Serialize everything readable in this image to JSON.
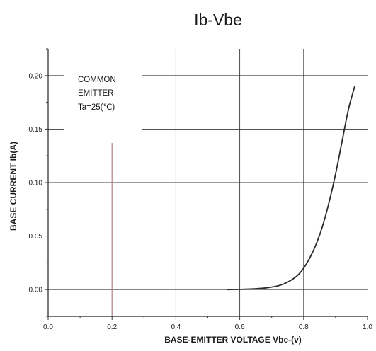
{
  "chart_data": {
    "type": "line",
    "title": "Ib-Vbe",
    "xlabel": "BASE-EMITTER VOLTAGE Vbe-(v)",
    "ylabel": "BASE CURRENT Ib(A)",
    "xlim": [
      0.0,
      1.0
    ],
    "ylim": [
      -0.025,
      0.225
    ],
    "x_ticks": [
      "0.0",
      "0.2",
      "0.4",
      "0.6",
      "0.8",
      "1.0"
    ],
    "y_ticks": [
      "0.00",
      "0.05",
      "0.10",
      "0.15",
      "0.20"
    ],
    "grid": true,
    "annotation": [
      "COMMON",
      "EMITTER",
      "Ta=25(℃)"
    ],
    "series": [
      {
        "x": [
          0.56,
          0.6,
          0.64,
          0.68,
          0.72,
          0.75,
          0.78,
          0.8,
          0.82,
          0.84,
          0.86,
          0.88,
          0.9,
          0.92,
          0.94,
          0.96
        ],
        "y": [
          0.0,
          0.0002,
          0.0006,
          0.0015,
          0.0035,
          0.007,
          0.013,
          0.02,
          0.03,
          0.043,
          0.06,
          0.082,
          0.108,
          0.138,
          0.168,
          0.19
        ]
      }
    ],
    "colors": {
      "curve": "#2b2b2b",
      "grid": "#3a3a3a",
      "marker": "#b08080"
    }
  }
}
